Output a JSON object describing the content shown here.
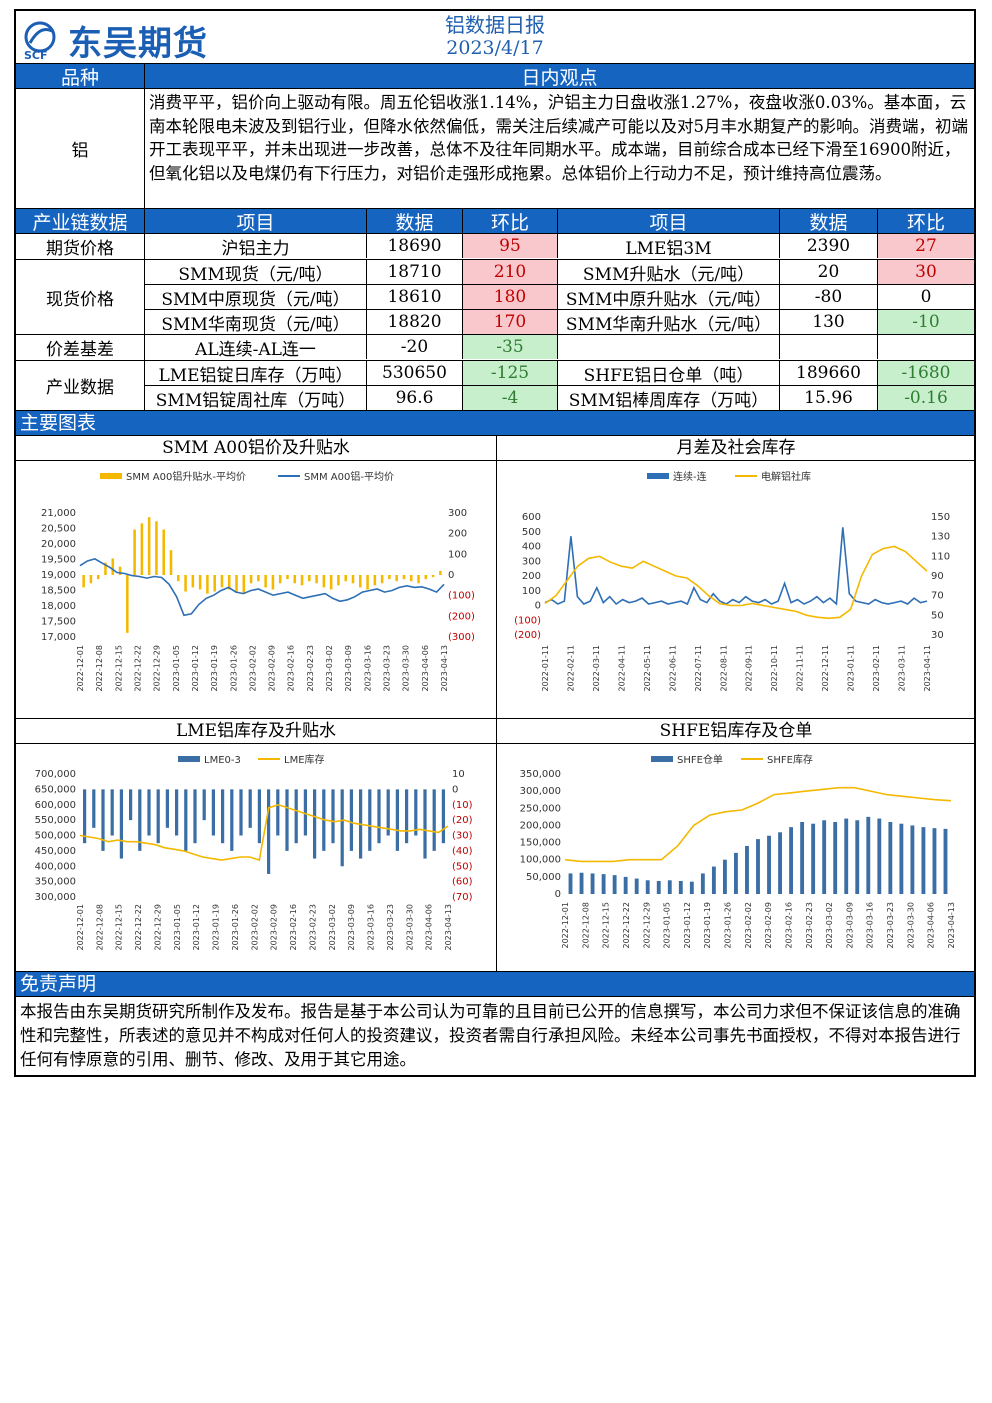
{
  "header": {
    "logo_text": "东吴期货",
    "logo_sub": "SCF",
    "title": "铝数据日报",
    "date": "2023/4/17"
  },
  "view": {
    "col1": "品种",
    "col2": "日内观点",
    "variety": "铝",
    "text": "消费平平，铝价向上驱动有限。周五伦铝收涨1.14%，沪铝主力日盘收涨1.27%，夜盘收涨0.03%。基本面，云南本轮限电未波及到铝行业，但降水依然偏低，需关注后续减产可能以及对5月丰水期复产的影响。消费端，初端开工表现平平，并未出现进一步改善，总体不及往年同期水平。成本端，目前综合成本已经下滑至16900附近，但氧化铝以及电煤仍有下行压力，对铝价走强形成拖累。总体铝价上行动力不足，预计维持高位震荡。"
  },
  "table": {
    "headers": [
      "产业链数据",
      "项目",
      "数据",
      "环比",
      "项目",
      "数据",
      "环比"
    ],
    "groups": [
      {
        "label": "期货价格",
        "rows": [
          [
            "沪铝主力",
            "18690",
            "95",
            "LME铝3M",
            "2390",
            "27"
          ]
        ]
      },
      {
        "label": "现货价格",
        "rows": [
          [
            "SMM现货（元/吨）",
            "18710",
            "210",
            "SMM升贴水（元/吨）",
            "20",
            "30"
          ],
          [
            "SMM中原现货（元/吨）",
            "18610",
            "180",
            "SMM中原升贴水（元/吨）",
            "-80",
            "0"
          ],
          [
            "SMM华南现货（元/吨）",
            "18820",
            "170",
            "SMM华南升贴水（元/吨）",
            "130",
            "-10"
          ]
        ]
      },
      {
        "label": "价差基差",
        "rows": [
          [
            "AL连续-AL连一",
            "-20",
            "-35",
            "",
            "",
            ""
          ]
        ]
      },
      {
        "label": "产业数据",
        "rows": [
          [
            "LME铝锭日库存（万吨）",
            "530650",
            "-125",
            "SHFE铝日仓单（吨）",
            "189660",
            "-1680"
          ],
          [
            "SMM铝锭周社库（万吨）",
            "96.6",
            "-4",
            "SMM铝棒周库存（万吨）",
            "15.96",
            "-0.16"
          ]
        ]
      }
    ]
  },
  "charts_bar": "主要图表",
  "chart_data": [
    {
      "type": "bar+line",
      "title": "SMM A00铝价及升贴水",
      "legend": [
        "SMM A00铝升贴水-平均价",
        "SMM A00铝-平均价"
      ],
      "y_left_ticks": [
        "21,000",
        "20,500",
        "20,000",
        "19,500",
        "19,000",
        "18,500",
        "18,000",
        "17,500",
        "17,000"
      ],
      "y_right_ticks": [
        "300",
        "200",
        "100",
        "0",
        "(100)",
        "(200)",
        "(300)"
      ],
      "x_ticks": [
        "2022-12-01",
        "2022-12-08",
        "2022-12-15",
        "2022-12-22",
        "2022-12-29",
        "2023-01-05",
        "2023-01-12",
        "2023-01-19",
        "2023-01-26",
        "2023-02-02",
        "2023-02-09",
        "2023-02-16",
        "2023-02-23",
        "2023-03-02",
        "2023-03-09",
        "2023-03-16",
        "2023-03-23",
        "2023-03-30",
        "2023-04-06",
        "2023-04-13"
      ],
      "ylim": [
        17000,
        21000
      ],
      "y2lim": [
        -300,
        300
      ],
      "line": [
        19300,
        19450,
        19520,
        19380,
        19250,
        19080,
        19050,
        18980,
        18950,
        18900,
        18950,
        18920,
        18700,
        18300,
        17700,
        17750,
        18050,
        18250,
        18350,
        18500,
        18600,
        18450,
        18400,
        18500,
        18550,
        18450,
        18350,
        18400,
        18450,
        18350,
        18250,
        18300,
        18350,
        18400,
        18250,
        18150,
        18200,
        18300,
        18450,
        18500,
        18550,
        18450,
        18500,
        18600,
        18650,
        18600,
        18620,
        18550,
        18450,
        18700
      ],
      "bars": [
        -60,
        -40,
        -20,
        60,
        80,
        40,
        -280,
        220,
        250,
        280,
        260,
        220,
        120,
        -30,
        -80,
        -60,
        -70,
        -90,
        -80,
        -60,
        -70,
        -80,
        -90,
        -40,
        -30,
        -60,
        -70,
        -40,
        -20,
        -40,
        -50,
        -30,
        -40,
        -60,
        -70,
        -50,
        -30,
        -40,
        -60,
        -70,
        -50,
        -40,
        -20,
        -30,
        -20,
        -30,
        -40,
        -20,
        -10,
        20
      ]
    },
    {
      "type": "line",
      "title": "月差及社会库存",
      "legend": [
        "连续-连",
        "电解铝社库"
      ],
      "y_left_ticks": [
        "600",
        "500",
        "400",
        "300",
        "200",
        "100",
        "0",
        "(100)",
        "(200)"
      ],
      "y_right_ticks": [
        "150",
        "130",
        "110",
        "90",
        "70",
        "50",
        "30"
      ],
      "x_ticks": [
        "2022-01-11",
        "2022-02-11",
        "2022-03-11",
        "2022-04-11",
        "2022-05-11",
        "2022-06-11",
        "2022-07-11",
        "2022-08-11",
        "2022-09-11",
        "2022-10-11",
        "2022-11-11",
        "2022-12-11",
        "2023-01-11",
        "2023-02-11",
        "2023-03-11",
        "2023-04-11"
      ],
      "ylim": [
        -200,
        600
      ],
      "y2lim": [
        30,
        150
      ],
      "line1": [
        20,
        40,
        10,
        30,
        470,
        60,
        10,
        30,
        120,
        20,
        60,
        10,
        40,
        20,
        30,
        50,
        10,
        20,
        30,
        10,
        20,
        30,
        10,
        120,
        40,
        20,
        80,
        30,
        10,
        40,
        20,
        60,
        30,
        20,
        40,
        10,
        30,
        150,
        20,
        40,
        10,
        30,
        60,
        20,
        50,
        10,
        530,
        80,
        30,
        20,
        10,
        40,
        20,
        10,
        20,
        30,
        10,
        50,
        20,
        30
      ],
      "line2": [
        62,
        70,
        85,
        100,
        108,
        110,
        104,
        100,
        98,
        105,
        100,
        95,
        90,
        88,
        80,
        70,
        62,
        60,
        60,
        62,
        60,
        58,
        56,
        54,
        50,
        48,
        47,
        48,
        56,
        90,
        112,
        118,
        120,
        115,
        105,
        95
      ]
    },
    {
      "type": "bar+line",
      "title": "LME铝库存及升贴水",
      "legend": [
        "LME0-3",
        "LME库存"
      ],
      "y_left_ticks": [
        "700,000",
        "650,000",
        "600,000",
        "550,000",
        "500,000",
        "450,000",
        "400,000",
        "350,000",
        "300,000"
      ],
      "y_right_ticks": [
        "10",
        "0",
        "(10)",
        "(20)",
        "(30)",
        "(40)",
        "(50)",
        "(60)",
        "(70)"
      ],
      "x_ticks": [
        "2022-12-01",
        "2022-12-08",
        "2022-12-15",
        "2022-12-22",
        "2022-12-29",
        "2023-01-05",
        "2023-01-12",
        "2023-01-19",
        "2023-01-26",
        "2023-02-02",
        "2023-02-09",
        "2023-02-16",
        "2023-02-23",
        "2023-03-02",
        "2023-03-09",
        "2023-03-16",
        "2023-03-23",
        "2023-03-30",
        "2023-04-06",
        "2023-04-13"
      ],
      "ylim": [
        300000,
        700000
      ],
      "y2lim": [
        -70,
        10
      ],
      "line": [
        500000,
        495000,
        490000,
        480000,
        485000,
        480000,
        480000,
        475000,
        470000,
        460000,
        455000,
        450000,
        440000,
        430000,
        425000,
        420000,
        425000,
        430000,
        430000,
        420000,
        590000,
        600000,
        590000,
        580000,
        570000,
        560000,
        550000,
        545000,
        550000,
        540000,
        535000,
        530000,
        525000,
        520000,
        515000,
        515000,
        520000,
        515000,
        510000,
        530650
      ],
      "bars": [
        -35,
        -25,
        -40,
        -30,
        -45,
        -20,
        -40,
        -30,
        -35,
        -25,
        -30,
        -40,
        -35,
        -20,
        -30,
        -35,
        -40,
        -30,
        -25,
        -35,
        -55,
        -30,
        -40,
        -35,
        -30,
        -45,
        -40,
        -35,
        -50,
        -40,
        -45,
        -40,
        -35,
        -30,
        -40,
        -35,
        -30,
        -45,
        -40,
        -35
      ]
    },
    {
      "type": "bar+line",
      "title": "SHFE铝库存及仓单",
      "legend": [
        "SHFE仓单",
        "SHFE库存"
      ],
      "y_left_ticks": [
        "350,000",
        "300,000",
        "250,000",
        "200,000",
        "150,000",
        "100,000",
        "50,000",
        "0"
      ],
      "x_ticks": [
        "2022-12-01",
        "2022-12-08",
        "2022-12-15",
        "2022-12-22",
        "2022-12-29",
        "2023-01-05",
        "2023-01-12",
        "2023-01-19",
        "2023-01-26",
        "2023-02-02",
        "2023-02-09",
        "2023-02-16",
        "2023-02-23",
        "2023-03-02",
        "2023-03-09",
        "2023-03-16",
        "2023-03-23",
        "2023-03-30",
        "2023-04-06",
        "2023-04-13"
      ],
      "ylim": [
        0,
        350000
      ],
      "line": [
        100000,
        95000,
        95000,
        95000,
        100000,
        100000,
        100000,
        140000,
        200000,
        230000,
        240000,
        245000,
        265000,
        290000,
        295000,
        300000,
        305000,
        310000,
        310000,
        300000,
        290000,
        285000,
        280000,
        275000,
        272000
      ],
      "bars": [
        60000,
        62000,
        60000,
        58000,
        55000,
        50000,
        45000,
        40000,
        38000,
        40000,
        38000,
        36000,
        60000,
        80000,
        100000,
        120000,
        140000,
        160000,
        170000,
        180000,
        195000,
        210000,
        205000,
        215000,
        210000,
        220000,
        215000,
        225000,
        220000,
        210000,
        205000,
        200000,
        195000,
        192000,
        190000
      ]
    }
  ],
  "disclaimer": {
    "title": "免责声明",
    "text": "本报告由东吴期货研究所制作及发布。报告是基于本公司认为可靠的且目前已公开的信息撰写，本公司力求但不保证该信息的准确性和完整性，所表述的意见并不构成对任何人的投资建议，投资者需自行承担风险。未经本公司事先书面授权，不得对本报告进行任何有悖原意的引用、删节、修改、及用于其它用途。"
  },
  "colors": {
    "blue": "#1565c0",
    "accent_line": "#2e6fb5",
    "gold": "#f5b800",
    "bar_blue": "#3a6ea5"
  }
}
